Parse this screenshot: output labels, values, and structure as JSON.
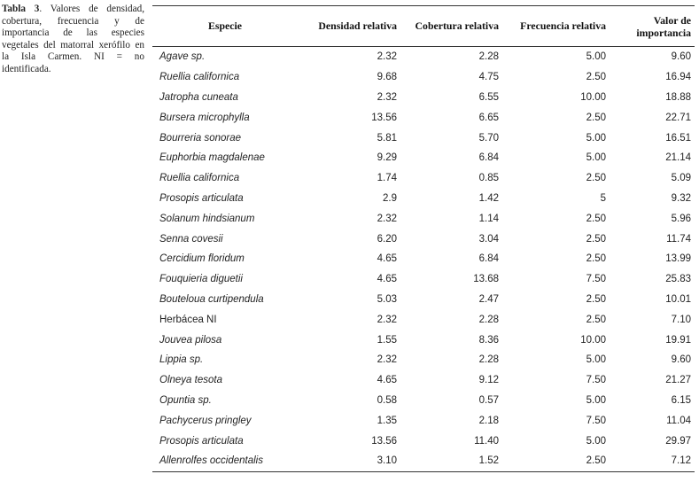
{
  "caption": {
    "label": "Tabla 3",
    "text": ". Valores de densidad, cobertura, frecuencia y de importancia de las especies vegetales del matorral xerófilo en la Isla Carmen. NI = no identificada."
  },
  "table": {
    "headers": {
      "especie": "Especie",
      "densidad": "Densidad relativa",
      "cobertura": "Cobertura relativa",
      "frecuencia": "Frecuencia relativa",
      "valor_line1": "Valor de",
      "valor_line2": "importancia"
    },
    "rows": [
      {
        "especie": "Agave sp.",
        "densidad": "2.32",
        "cobertura": "2.28",
        "frecuencia": "5.00",
        "valor": "9.60"
      },
      {
        "especie": "Ruellia californica",
        "densidad": "9.68",
        "cobertura": "4.75",
        "frecuencia": "2.50",
        "valor": "16.94"
      },
      {
        "especie": "Jatropha cuneata",
        "densidad": "2.32",
        "cobertura": "6.55",
        "frecuencia": "10.00",
        "valor": "18.88"
      },
      {
        "especie": "Bursera microphylla",
        "densidad": "13.56",
        "cobertura": "6.65",
        "frecuencia": "2.50",
        "valor": "22.71"
      },
      {
        "especie": "Bourreria sonorae",
        "densidad": "5.81",
        "cobertura": "5.70",
        "frecuencia": "5.00",
        "valor": "16.51"
      },
      {
        "especie": "Euphorbia magdalenae",
        "densidad": "9.29",
        "cobertura": "6.84",
        "frecuencia": "5.00",
        "valor": "21.14"
      },
      {
        "especie": "Ruellia californica",
        "densidad": "1.74",
        "cobertura": "0.85",
        "frecuencia": "2.50",
        "valor": "5.09"
      },
      {
        "especie": "Prosopis articulata",
        "densidad": "2.9",
        "cobertura": "1.42",
        "frecuencia": "5",
        "valor": "9.32"
      },
      {
        "especie": "Solanum hindsianum",
        "densidad": "2.32",
        "cobertura": "1.14",
        "frecuencia": "2.50",
        "valor": "5.96"
      },
      {
        "especie": "Senna covesii",
        "densidad": "6.20",
        "cobertura": "3.04",
        "frecuencia": "2.50",
        "valor": "11.74"
      },
      {
        "especie": "Cercidium floridum",
        "densidad": "4.65",
        "cobertura": "6.84",
        "frecuencia": "2.50",
        "valor": "13.99"
      },
      {
        "especie": "Fouquieria diguetii",
        "densidad": "4.65",
        "cobertura": "13.68",
        "frecuencia": "7.50",
        "valor": "25.83"
      },
      {
        "especie": "Bouteloua curtipendula",
        "densidad": "5.03",
        "cobertura": "2.47",
        "frecuencia": "2.50",
        "valor": "10.01"
      },
      {
        "especie": "Herbácea NI",
        "densidad": "2.32",
        "cobertura": "2.28",
        "frecuencia": "2.50",
        "valor": "7.10",
        "plain": true
      },
      {
        "especie": "Jouvea pilosa",
        "densidad": "1.55",
        "cobertura": "8.36",
        "frecuencia": "10.00",
        "valor": "19.91"
      },
      {
        "especie": "Lippia sp.",
        "densidad": "2.32",
        "cobertura": "2.28",
        "frecuencia": "5.00",
        "valor": "9.60"
      },
      {
        "especie": "Olneya tesota",
        "densidad": "4.65",
        "cobertura": "9.12",
        "frecuencia": "7.50",
        "valor": "21.27"
      },
      {
        "especie": "Opuntia sp.",
        "densidad": "0.58",
        "cobertura": "0.57",
        "frecuencia": "5.00",
        "valor": "6.15"
      },
      {
        "especie": "Pachycerus pringley",
        "densidad": "1.35",
        "cobertura": "2.18",
        "frecuencia": "7.50",
        "valor": "11.04"
      },
      {
        "especie": "Prosopis articulata",
        "densidad": "13.56",
        "cobertura": "11.40",
        "frecuencia": "5.00",
        "valor": "29.97"
      },
      {
        "especie": "Allenrolfes occidentalis",
        "densidad": "3.10",
        "cobertura": "1.52",
        "frecuencia": "2.50",
        "valor": "7.12"
      }
    ]
  }
}
